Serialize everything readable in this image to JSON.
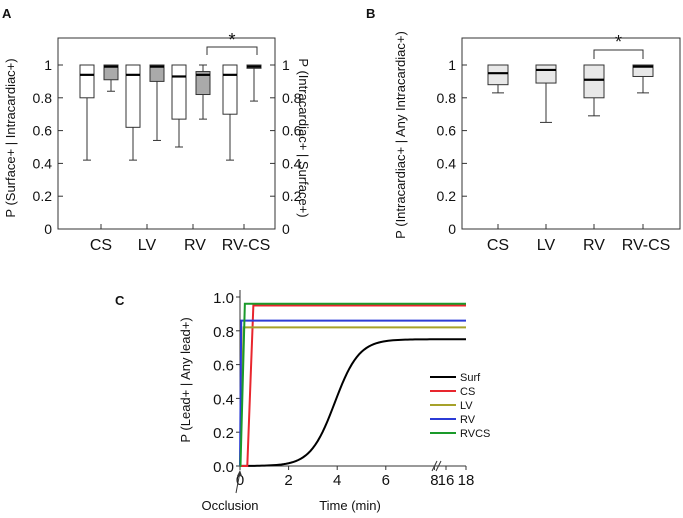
{
  "chart_data": [
    {
      "panel": "A",
      "type": "boxplot",
      "ylabel_left": "P (Surface+ | Intracardiac+)",
      "ylabel_right": "P (Intracardiac+ | Surface+)",
      "ylim": [
        0,
        1
      ],
      "yticks": [
        "0",
        "0.2",
        "0.4",
        "0.6",
        "0.8",
        "1"
      ],
      "categories": [
        "CS",
        "LV",
        "RV",
        "RV-CS"
      ],
      "significance": {
        "between": "RV to RV-CS",
        "label": "*"
      },
      "series": [
        {
          "axis": "left",
          "fill": "#ffffff",
          "boxes": [
            {
              "min": 0.42,
              "q1": 0.8,
              "median": 0.94,
              "q3": 1.0,
              "max": 1.0
            },
            {
              "min": 0.42,
              "q1": 0.62,
              "median": 0.94,
              "q3": 1.0,
              "max": 1.0
            },
            {
              "min": 0.5,
              "q1": 0.67,
              "median": 0.93,
              "q3": 1.0,
              "max": 1.0
            },
            {
              "min": 0.42,
              "q1": 0.7,
              "median": 0.94,
              "q3": 1.0,
              "max": 1.0
            }
          ]
        },
        {
          "axis": "right",
          "fill": "#aaaaaa",
          "boxes": [
            {
              "min": 0.84,
              "q1": 0.91,
              "median": 0.99,
              "q3": 1.0,
              "max": 1.0
            },
            {
              "min": 0.54,
              "q1": 0.9,
              "median": 0.99,
              "q3": 1.0,
              "max": 1.0
            },
            {
              "min": 0.67,
              "q1": 0.82,
              "median": 0.94,
              "q3": 0.96,
              "max": 1.0
            },
            {
              "min": 0.78,
              "q1": 0.98,
              "median": 0.99,
              "q3": 1.0,
              "max": 1.0
            }
          ]
        }
      ]
    },
    {
      "panel": "B",
      "type": "boxplot",
      "ylabel": "P (Intracardiac+ | Any Intracardiac+)",
      "ylim": [
        0,
        1
      ],
      "yticks": [
        "0",
        "0.2",
        "0.4",
        "0.6",
        "0.8",
        "1"
      ],
      "categories": [
        "CS",
        "LV",
        "RV",
        "RV-CS"
      ],
      "significance": {
        "between": "RV to RV-CS",
        "label": "*"
      },
      "series": [
        {
          "fill": "#e8e8e8",
          "boxes": [
            {
              "min": 0.83,
              "q1": 0.88,
              "median": 0.95,
              "q3": 1.0,
              "max": 1.0
            },
            {
              "min": 0.65,
              "q1": 0.89,
              "median": 0.97,
              "q3": 1.0,
              "max": 1.0
            },
            {
              "min": 0.69,
              "q1": 0.8,
              "median": 0.91,
              "q3": 1.0,
              "max": 1.0
            },
            {
              "min": 0.83,
              "q1": 0.93,
              "median": 0.99,
              "q3": 1.0,
              "max": 1.0
            }
          ]
        }
      ]
    },
    {
      "panel": "C",
      "type": "line",
      "xlabel": "Time (min)",
      "ylabel": "P (Lead+ | Any lead+)",
      "ylim": [
        0,
        1
      ],
      "yticks": [
        "0.0",
        "0.2",
        "0.4",
        "0.6",
        "0.8",
        "1.0"
      ],
      "xticks": [
        "0",
        "2",
        "4",
        "6",
        "8",
        "16",
        "18"
      ],
      "x_break": "between 8 and 16",
      "annotation": "Occlusion",
      "legend_position": "bottom-right",
      "series": [
        {
          "name": "Surf",
          "color": "#000000",
          "kind": "sigmoid",
          "max": 0.75,
          "midpoint": 3.9,
          "steepness": 2.0
        },
        {
          "name": "CS",
          "color": "#e8262e",
          "kind": "step",
          "value": 0.95,
          "rise_start": 0.3,
          "rise_end": 0.55
        },
        {
          "name": "LV",
          "color": "#a6a12a",
          "kind": "step",
          "value": 0.82,
          "rise_start": 0.0,
          "rise_end": 0.15
        },
        {
          "name": "RV",
          "color": "#2b3bd6",
          "kind": "step",
          "value": 0.86,
          "rise_start": 0.0,
          "rise_end": 0.05
        },
        {
          "name": "RVCS",
          "color": "#1a9a2a",
          "kind": "step",
          "value": 0.96,
          "rise_start": 0.02,
          "rise_end": 0.2
        }
      ]
    }
  ]
}
